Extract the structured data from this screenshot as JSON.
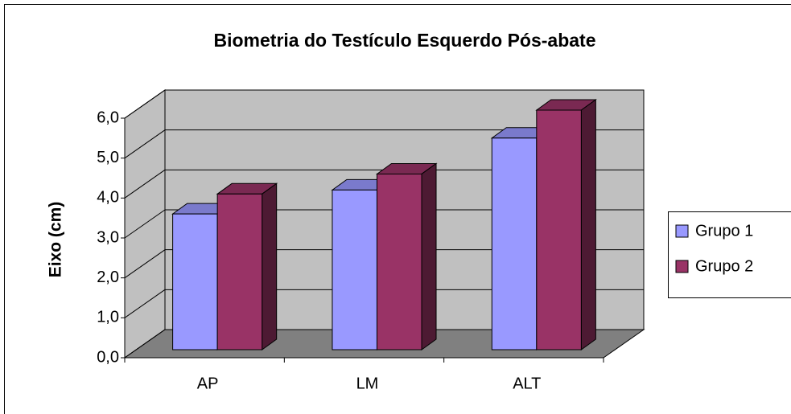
{
  "chart_data": {
    "type": "bar3d",
    "title": "Biometria do Testículo Esquerdo Pós-abate",
    "ylabel": "Eixo (cm)",
    "categories": [
      "AP",
      "LM",
      "ALT"
    ],
    "series": [
      {
        "name": "Grupo 1",
        "color": "#9999ff",
        "values": [
          3.4,
          4.0,
          5.3
        ]
      },
      {
        "name": "Grupo 2",
        "color": "#993366",
        "values": [
          3.9,
          4.4,
          6.0
        ]
      }
    ],
    "ylim": [
      0,
      6
    ],
    "yticks": [
      {
        "value": 0,
        "label": "0,0"
      },
      {
        "value": 1,
        "label": "1,0"
      },
      {
        "value": 2,
        "label": "2,0"
      },
      {
        "value": 3,
        "label": "3,0"
      },
      {
        "value": 4,
        "label": "4,0"
      },
      {
        "value": 5,
        "label": "5,0"
      },
      {
        "value": 6,
        "label": "6,0"
      }
    ],
    "grid": true,
    "legend": "right"
  }
}
